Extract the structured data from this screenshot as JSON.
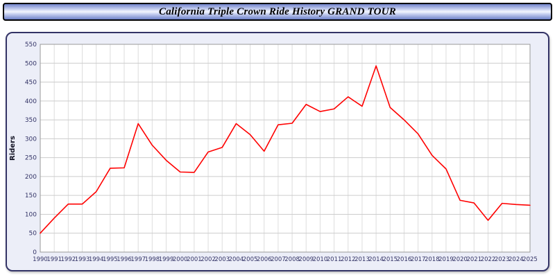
{
  "title": "California Triple Crown Ride History GRAND TOUR",
  "colors": {
    "line": "#ff0000",
    "axis_text": "#333366",
    "panel_bg": "#eceef8",
    "panel_border": "#333366",
    "plot_bg": "#ffffff",
    "grid_major": "#cccccc",
    "grid_minor": "#dddddd",
    "plot_frame": "#999999",
    "ylabel_text": "#111122"
  },
  "chart_data": {
    "type": "line",
    "title": "California Triple Crown Ride History GRAND TOUR",
    "xlabel": "",
    "ylabel": "Riders",
    "categories": [
      1990,
      1991,
      1992,
      1993,
      1994,
      1995,
      1996,
      1997,
      1998,
      1999,
      2000,
      2001,
      2002,
      2003,
      2004,
      2005,
      2006,
      2007,
      2008,
      2009,
      2010,
      2011,
      2012,
      2013,
      2014,
      2015,
      2016,
      2017,
      2018,
      2019,
      2020,
      2021,
      2022,
      2023,
      2024,
      2025
    ],
    "values": [
      50,
      90,
      127,
      127,
      160,
      222,
      223,
      340,
      283,
      243,
      212,
      211,
      265,
      277,
      340,
      311,
      267,
      337,
      341,
      391,
      372,
      379,
      411,
      386,
      493,
      383,
      350,
      313,
      256,
      220,
      137,
      130,
      84,
      129,
      126,
      124
    ],
    "ylim": [
      0,
      550
    ],
    "ytick_step": 50,
    "grid": true,
    "legend_position": "none",
    "line_color": "#ff0000"
  }
}
